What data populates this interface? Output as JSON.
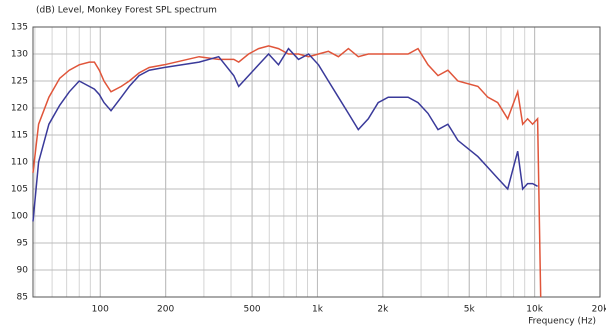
{
  "chart_data": {
    "type": "line",
    "title": "(dB)  Level, Monkey Forest SPL spectrum",
    "x_label": "Frequency  (Hz)",
    "log_x": true,
    "grid": true,
    "minor_grid": true,
    "xlim": [
      49,
      20000
    ],
    "ylim": [
      85,
      135
    ],
    "xticks": [
      100,
      200,
      500,
      {
        "value": 1000,
        "label": "1k"
      },
      {
        "value": 2000,
        "label": "2k"
      },
      {
        "value": 5000,
        "label": "5k"
      },
      {
        "value": 10000,
        "label": "10k"
      },
      {
        "value": 20000,
        "label": "20k"
      }
    ],
    "yticks": [
      85,
      90,
      95,
      100,
      105,
      110,
      115,
      120,
      125,
      130,
      135
    ],
    "x": [
      49,
      52,
      58,
      65,
      72,
      80,
      89,
      94,
      99,
      104,
      112,
      125,
      136,
      151,
      168,
      197,
      285,
      351,
      412,
      434,
      482,
      536,
      596,
      662,
      736,
      818,
      910,
      1011,
      1123,
      1249,
      1388,
      1542,
      1714,
      1905,
      2117,
      2614,
      2905,
      3229,
      3589,
      3989,
      4433,
      5480,
      6085,
      6762,
      7516,
      8356,
      8809,
      9287,
      9790,
      10320,
      10660
    ],
    "series": [
      {
        "color": "#e0553a",
        "values": [
          108,
          117,
          122,
          125.5,
          127,
          128,
          128.5,
          128.5,
          127,
          125,
          123,
          124,
          125,
          126.5,
          127.5,
          128,
          129.5,
          129,
          129,
          128.5,
          130,
          131,
          131.5,
          131,
          130,
          130,
          129.5,
          130,
          130.5,
          129.5,
          131,
          129.5,
          130,
          130,
          130,
          130,
          131,
          128,
          126,
          127,
          125,
          124,
          122,
          121,
          118,
          123,
          117,
          118,
          117,
          118,
          85
        ]
      },
      {
        "color": "#3a3a9a",
        "values": [
          99,
          110,
          117,
          120.5,
          123,
          125,
          124,
          123.5,
          122.5,
          121,
          119.5,
          122,
          124,
          126,
          127,
          127.5,
          128.5,
          129.5,
          126,
          124,
          126,
          128,
          130,
          128,
          131,
          129,
          130,
          128,
          125,
          122,
          119,
          116,
          118,
          121,
          122,
          122,
          121,
          119,
          116,
          117,
          114,
          111,
          109,
          107,
          105,
          112,
          105,
          106,
          106,
          105.5,
          null
        ]
      }
    ]
  }
}
